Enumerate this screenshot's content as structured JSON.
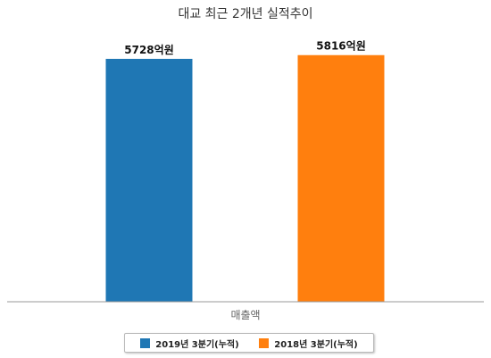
{
  "chart_data": {
    "type": "bar",
    "title": "대교 최근 2개년 실적추이",
    "categories": [
      "매출액"
    ],
    "series": [
      {
        "name": "2019년 3분기(누적)",
        "values": [
          5728
        ],
        "value_label": "5728억원",
        "color": "#1f77b4"
      },
      {
        "name": "2018년 3분기(누적)",
        "values": [
          5816
        ],
        "value_label": "5816억원",
        "color": "#ff7f0e"
      }
    ],
    "ylim": [
      0,
      6400
    ],
    "grid": false,
    "legend_position": "bottom-center",
    "xlabel": "",
    "ylabel": ""
  }
}
